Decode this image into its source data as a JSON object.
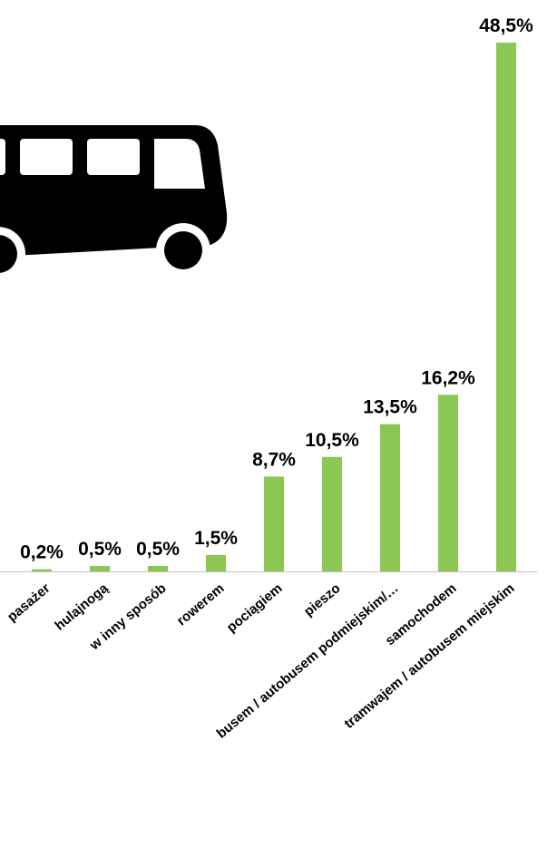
{
  "chart_data": {
    "type": "bar",
    "categories": [
      "pasażer",
      "hulajnogą",
      "w inny sposób",
      "rowerem",
      "pociągiem",
      "pieszo",
      "busem / autobusem podmiejskim/…",
      "samochodem",
      "tramwajem / autobusem miejskim"
    ],
    "values": [
      0.2,
      0.5,
      0.5,
      1.5,
      8.7,
      10.5,
      13.5,
      16.2,
      48.5
    ],
    "value_labels": [
      "0,2%",
      "0,5%",
      "0,5%",
      "1,5%",
      "8,7%",
      "10,5%",
      "13,5%",
      "16,2%",
      "48,5%"
    ],
    "color": "#8cc653"
  }
}
